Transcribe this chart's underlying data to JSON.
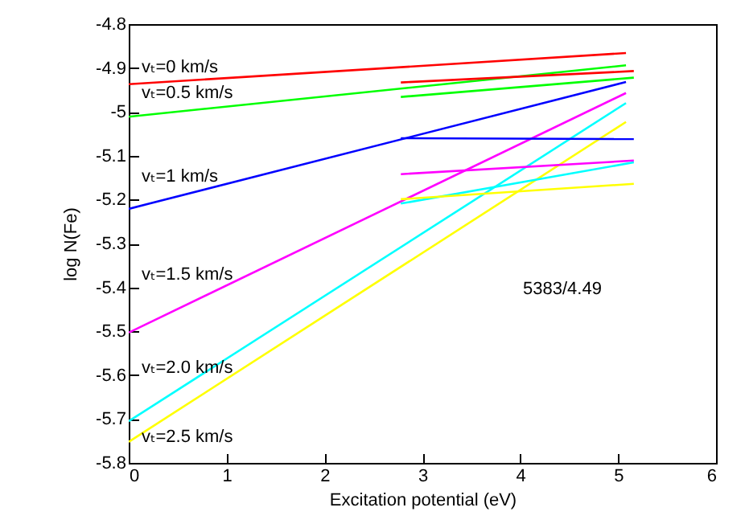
{
  "chart_data": {
    "type": "line",
    "xlabel": "Excitation potential (eV)",
    "ylabel": "log N(Fe)",
    "xlim": [
      0,
      6
    ],
    "ylim": [
      -5.8,
      -4.8
    ],
    "xticks": [
      0,
      1,
      2,
      3,
      4,
      5,
      6
    ],
    "yticks": [
      -5.8,
      -5.7,
      -5.6,
      -5.5,
      -5.4,
      -5.3,
      -5.2,
      -5.1,
      -5,
      -4.9,
      -4.8
    ],
    "grid": false,
    "line_style": "solid",
    "marker": "none",
    "series": [
      {
        "color": "#ff0000",
        "x": [
          0,
          5.08
        ],
        "values": [
          -4.937,
          -4.866
        ]
      },
      {
        "color": "#00ff00",
        "x": [
          0,
          5.08
        ],
        "values": [
          -5.011,
          -4.894
        ]
      },
      {
        "color": "#0000ff",
        "x": [
          0,
          5.08
        ],
        "values": [
          -5.221,
          -4.932
        ]
      },
      {
        "color": "#ff00ff",
        "x": [
          0,
          5.08
        ],
        "values": [
          -5.503,
          -4.957
        ]
      },
      {
        "color": "#00ffff",
        "x": [
          0,
          5.08
        ],
        "values": [
          -5.705,
          -4.98
        ]
      },
      {
        "color": "#ffff00",
        "x": [
          0,
          5.08
        ],
        "values": [
          -5.752,
          -5.023
        ]
      },
      {
        "color": "#ff0000",
        "x": [
          2.78,
          5.16
        ],
        "values": [
          -4.933,
          -4.907
        ]
      },
      {
        "color": "#00ff00",
        "x": [
          2.78,
          5.16
        ],
        "values": [
          -4.966,
          -4.922
        ]
      },
      {
        "color": "#0000ff",
        "x": [
          2.78,
          5.16
        ],
        "values": [
          -5.06,
          -5.062
        ]
      },
      {
        "color": "#ff00ff",
        "x": [
          2.78,
          5.16
        ],
        "values": [
          -5.142,
          -5.111
        ]
      },
      {
        "color": "#00ffff",
        "x": [
          2.78,
          5.16
        ],
        "values": [
          -5.209,
          -5.115
        ]
      },
      {
        "color": "#ffff00",
        "x": [
          2.78,
          5.16
        ],
        "values": [
          -5.199,
          -5.164
        ]
      }
    ],
    "annotations": [
      "vₜ=0 km/s",
      "vₜ=0.5 km/s",
      "vₜ=1 km/s",
      "vₜ=1.5 km/s",
      "vₜ=2.0 km/s",
      "vₜ=2.5 km/s",
      "5383/4.49"
    ]
  }
}
